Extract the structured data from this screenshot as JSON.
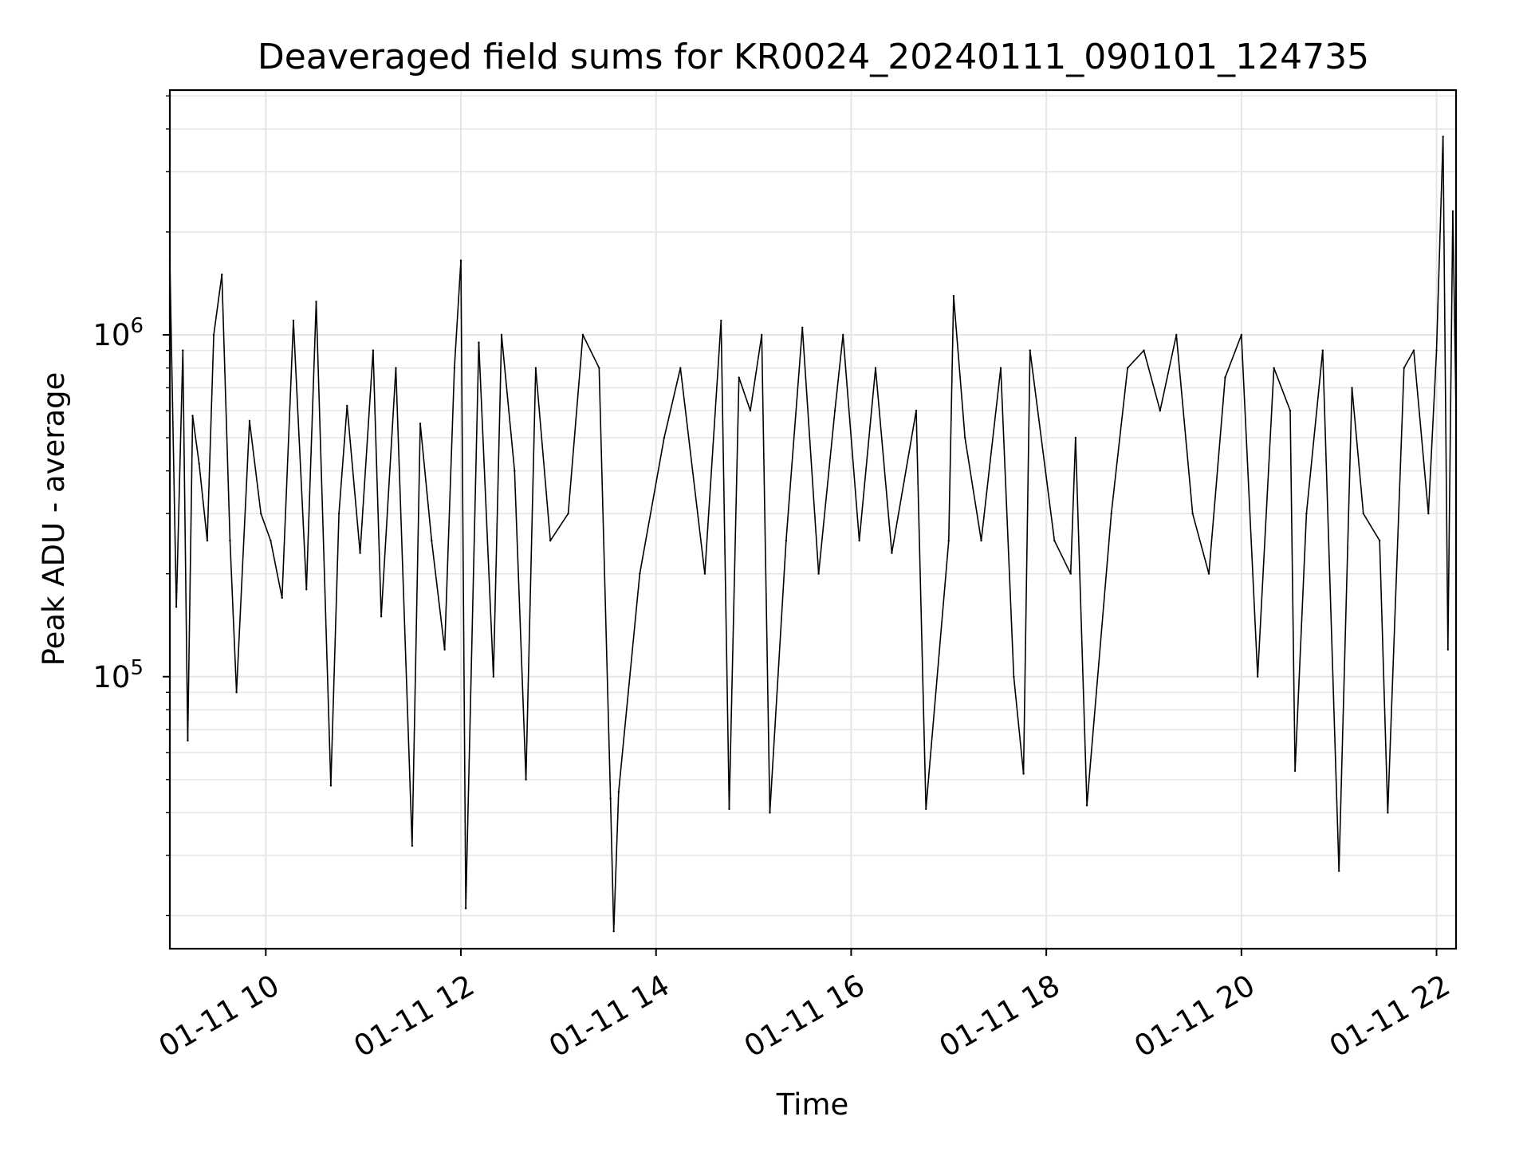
{
  "chart_data": {
    "type": "line",
    "title": "Deaveraged field sums for KR0024_20240111_090101_124735",
    "xlabel": "Time",
    "ylabel": "Peak ADU - average",
    "yscale": "log",
    "xlim": [
      "01-11 09:01",
      "01-11 22:12"
    ],
    "ylim": [
      16000,
      5200000
    ],
    "grid": true,
    "grid_color": "#e6e6e6",
    "line_color": "#000000",
    "x_ticks": [
      {
        "value": "01-11 10:00",
        "label": "01-11 10"
      },
      {
        "value": "01-11 12:00",
        "label": "01-11 12"
      },
      {
        "value": "01-11 14:00",
        "label": "01-11 14"
      },
      {
        "value": "01-11 16:00",
        "label": "01-11 16"
      },
      {
        "value": "01-11 18:00",
        "label": "01-11 18"
      },
      {
        "value": "01-11 20:00",
        "label": "01-11 20"
      },
      {
        "value": "01-11 22:00",
        "label": "01-11 22"
      }
    ],
    "y_ticks": [
      {
        "value": 100000,
        "base": "10",
        "exp": "5"
      },
      {
        "value": 1000000,
        "base": "10",
        "exp": "6"
      }
    ],
    "x": [
      "01-11 09:01",
      "01-11 09:05",
      "01-11 09:09",
      "01-11 09:12",
      "01-11 09:15",
      "01-11 09:19",
      "01-11 09:24",
      "01-11 09:28",
      "01-11 09:33",
      "01-11 09:38",
      "01-11 09:42",
      "01-11 09:50",
      "01-11 09:57",
      "01-11 10:03",
      "01-11 10:10",
      "01-11 10:17",
      "01-11 10:25",
      "01-11 10:31",
      "01-11 10:40",
      "01-11 10:45",
      "01-11 10:50",
      "01-11 10:58",
      "01-11 11:06",
      "01-11 11:11",
      "01-11 11:20",
      "01-11 11:30",
      "01-11 11:35",
      "01-11 11:42",
      "01-11 11:50",
      "01-11 11:56",
      "01-11 12:00",
      "01-11 12:03",
      "01-11 12:11",
      "01-11 12:20",
      "01-11 12:25",
      "01-11 12:33",
      "01-11 12:40",
      "01-11 12:46",
      "01-11 12:55",
      "01-11 13:06",
      "01-11 13:15",
      "01-11 13:25",
      "01-11 13:32",
      "01-11 13:34",
      "01-11 13:37",
      "01-11 13:50",
      "01-11 14:05",
      "01-11 14:15",
      "01-11 14:30",
      "01-11 14:40",
      "01-11 14:45",
      "01-11 14:51",
      "01-11 14:58",
      "01-11 15:05",
      "01-11 15:10",
      "01-11 15:20",
      "01-11 15:30",
      "01-11 15:40",
      "01-11 15:50",
      "01-11 15:55",
      "01-11 16:05",
      "01-11 16:15",
      "01-11 16:25",
      "01-11 16:40",
      "01-11 16:46",
      "01-11 17:00",
      "01-11 17:03",
      "01-11 17:10",
      "01-11 17:20",
      "01-11 17:32",
      "01-11 17:40",
      "01-11 17:46",
      "01-11 17:50",
      "01-11 18:05",
      "01-11 18:15",
      "01-11 18:18",
      "01-11 18:25",
      "01-11 18:40",
      "01-11 18:50",
      "01-11 19:00",
      "01-11 19:10",
      "01-11 19:20",
      "01-11 19:30",
      "01-11 19:40",
      "01-11 19:50",
      "01-11 20:00",
      "01-11 20:10",
      "01-11 20:20",
      "01-11 20:30",
      "01-11 20:33",
      "01-11 20:40",
      "01-11 20:50",
      "01-11 21:00",
      "01-11 21:08",
      "01-11 21:15",
      "01-11 21:25",
      "01-11 21:30",
      "01-11 21:40",
      "01-11 21:46",
      "01-11 21:55",
      "01-11 22:00",
      "01-11 22:04",
      "01-11 22:07",
      "01-11 22:10",
      "01-11 22:12"
    ],
    "values": [
      1650000,
      160000,
      900000,
      65000,
      580000,
      420000,
      250000,
      1000000,
      1500000,
      250000,
      90000,
      560000,
      300000,
      250000,
      170000,
      1100000,
      180000,
      1250000,
      48000,
      300000,
      620000,
      230000,
      900000,
      150000,
      800000,
      32000,
      550000,
      250000,
      120000,
      800000,
      1650000,
      21000,
      950000,
      100000,
      1000000,
      400000,
      50000,
      800000,
      250000,
      300000,
      1000000,
      800000,
      44000,
      18000,
      46000,
      200000,
      500000,
      800000,
      200000,
      1100000,
      41000,
      750000,
      600000,
      1000000,
      40000,
      250000,
      1050000,
      200000,
      600000,
      1000000,
      250000,
      800000,
      230000,
      600000,
      41000,
      250000,
      1300000,
      500000,
      250000,
      800000,
      100000,
      52000,
      900000,
      250000,
      200000,
      500000,
      42000,
      300000,
      800000,
      900000,
      600000,
      1000000,
      300000,
      200000,
      750000,
      1000000,
      100000,
      800000,
      600000,
      53000,
      300000,
      900000,
      27000,
      700000,
      300000,
      250000,
      40000,
      800000,
      900000,
      300000,
      900000,
      3800000,
      120000,
      2300000,
      600000
    ]
  }
}
